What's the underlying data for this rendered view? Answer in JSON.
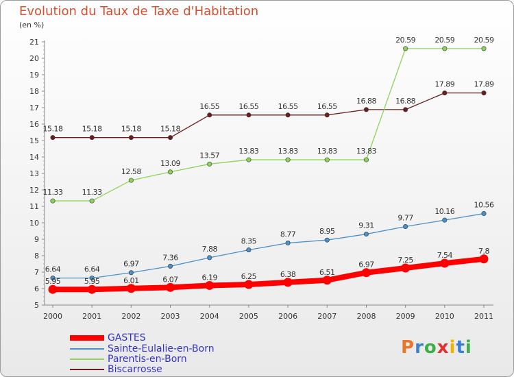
{
  "title": "Evolution du Taux de Taxe d'Habitation",
  "subtitle": "(en %)",
  "colors": {
    "gastes": "#ff0000",
    "sainte_eulalie": "#4a90c9",
    "parentis": "#8cd35a",
    "biscarrosse": "#6b1d1d"
  },
  "chart_data": {
    "type": "line",
    "x": [
      "2000",
      "2001",
      "2002",
      "2003",
      "2004",
      "2005",
      "2006",
      "2007",
      "2008",
      "2009",
      "2010",
      "2011"
    ],
    "ylim": [
      5,
      21
    ],
    "yticks": [
      "5",
      "6",
      "7",
      "8",
      "9",
      "10",
      "11",
      "12",
      "13",
      "14",
      "15",
      "16",
      "17",
      "18",
      "19",
      "20",
      "21"
    ],
    "grid": false,
    "legend_position": "bottom-left",
    "series": [
      {
        "name": "GASTES",
        "color": "#ff0000",
        "values": [
          5.95,
          5.95,
          6.01,
          6.07,
          6.19,
          6.25,
          6.38,
          6.51,
          6.97,
          7.25,
          7.54,
          7.8
        ],
        "labels": [
          "5.95",
          "5.95",
          "6.01",
          "6.07",
          "6.19",
          "6.25",
          "6.38",
          "6.51",
          "6.97",
          "7.25",
          "7.54",
          "7.8"
        ]
      },
      {
        "name": "Sainte-Eulalie-en-Born",
        "color": "#4a90c9",
        "values": [
          6.64,
          6.64,
          6.97,
          7.36,
          7.88,
          8.35,
          8.77,
          8.95,
          9.31,
          9.77,
          10.16,
          10.56
        ],
        "labels": [
          "6.64",
          "6.64",
          "6.97",
          "7.36",
          "7.88",
          "8.35",
          "8.77",
          "8.95",
          "9.31",
          "9.77",
          "10.16",
          "10.56"
        ]
      },
      {
        "name": "Parentis-en-Born",
        "color": "#8cd35a",
        "values": [
          11.33,
          11.33,
          12.58,
          13.09,
          13.57,
          13.83,
          13.83,
          13.83,
          13.83,
          20.59,
          20.59,
          20.59
        ],
        "labels": [
          "11.33",
          "11.33",
          "12.58",
          "13.09",
          "13.57",
          "13.83",
          "13.83",
          "13.83",
          "13.83",
          "20.59",
          "20.59",
          "20.59"
        ]
      },
      {
        "name": "Biscarrosse",
        "color": "#6b1d1d",
        "values": [
          15.18,
          15.18,
          15.18,
          15.18,
          16.55,
          16.55,
          16.55,
          16.55,
          16.88,
          16.88,
          17.89,
          17.89
        ],
        "labels": [
          "15.18",
          "15.18",
          "15.18",
          "15.18",
          "16.55",
          "16.55",
          "16.55",
          "16.55",
          "16.88",
          "16.88",
          "17.89",
          "17.89"
        ]
      }
    ]
  },
  "legend": [
    {
      "label": "GASTES",
      "color": "#ff0000"
    },
    {
      "label": "Sainte-Eulalie-en-Born",
      "color": "#4a90c9"
    },
    {
      "label": "Parentis-en-Born",
      "color": "#8cd35a"
    },
    {
      "label": "Biscarrosse",
      "color": "#6b1d1d"
    }
  ],
  "logo": {
    "text": "Proxiti",
    "letters": [
      {
        "char": "P",
        "color": "#e8772e"
      },
      {
        "char": "r",
        "color": "#3a7fd0"
      },
      {
        "char": "o",
        "color": "#3cae47"
      },
      {
        "char": "x",
        "color": "#e03030"
      },
      {
        "char": "i",
        "color": "#f0b400"
      },
      {
        "char": "t",
        "color": "#3a7fd0"
      },
      {
        "char": "i",
        "color": "#3cae47"
      }
    ]
  }
}
